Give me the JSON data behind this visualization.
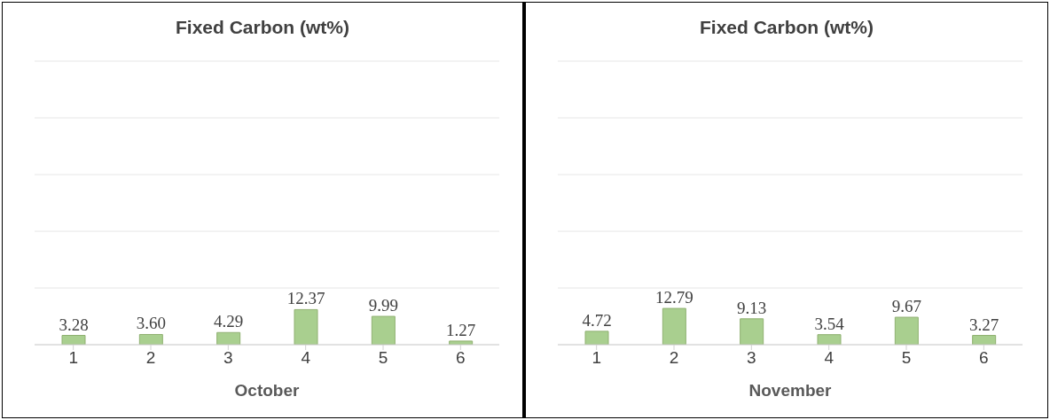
{
  "chart_data": [
    {
      "type": "bar",
      "title": "Fixed Carbon (wt%)",
      "xlabel": "October",
      "categories": [
        "1",
        "2",
        "3",
        "4",
        "5",
        "6"
      ],
      "values": [
        3.28,
        3.6,
        4.29,
        12.37,
        9.99,
        1.27
      ],
      "value_labels": [
        "3.28",
        "3.60",
        "4.29",
        "12.37",
        "9.99",
        "1.27"
      ],
      "color": "#a9cf8f",
      "ylim": [
        0,
        100
      ],
      "yticks": [
        {
          "value": 0,
          "label": null
        },
        {
          "value": 20,
          "label": null
        },
        {
          "value": 40,
          "label": null
        },
        {
          "value": 60,
          "label": null
        },
        {
          "value": 80,
          "label": null
        },
        {
          "value": 100,
          "label": null
        }
      ],
      "grid": "y",
      "tick_labels": "x"
    },
    {
      "type": "bar",
      "title": "Fixed Carbon (wt%)",
      "xlabel": "November",
      "categories": [
        "1",
        "2",
        "3",
        "4",
        "5",
        "6"
      ],
      "values": [
        4.72,
        12.79,
        9.13,
        3.54,
        9.67,
        3.27
      ],
      "value_labels": [
        "4.72",
        "12.79",
        "9.13",
        "3.54",
        "9.67",
        "3.27"
      ],
      "color": "#a9cf8f",
      "ylim": [
        0,
        100
      ],
      "yticks": [
        {
          "value": 0,
          "label": null
        },
        {
          "value": 20,
          "label": null
        },
        {
          "value": 40,
          "label": null
        },
        {
          "value": 60,
          "label": null
        },
        {
          "value": 80,
          "label": null
        },
        {
          "value": 100,
          "label": null
        }
      ],
      "grid": "y",
      "tick_labels": "x"
    }
  ]
}
